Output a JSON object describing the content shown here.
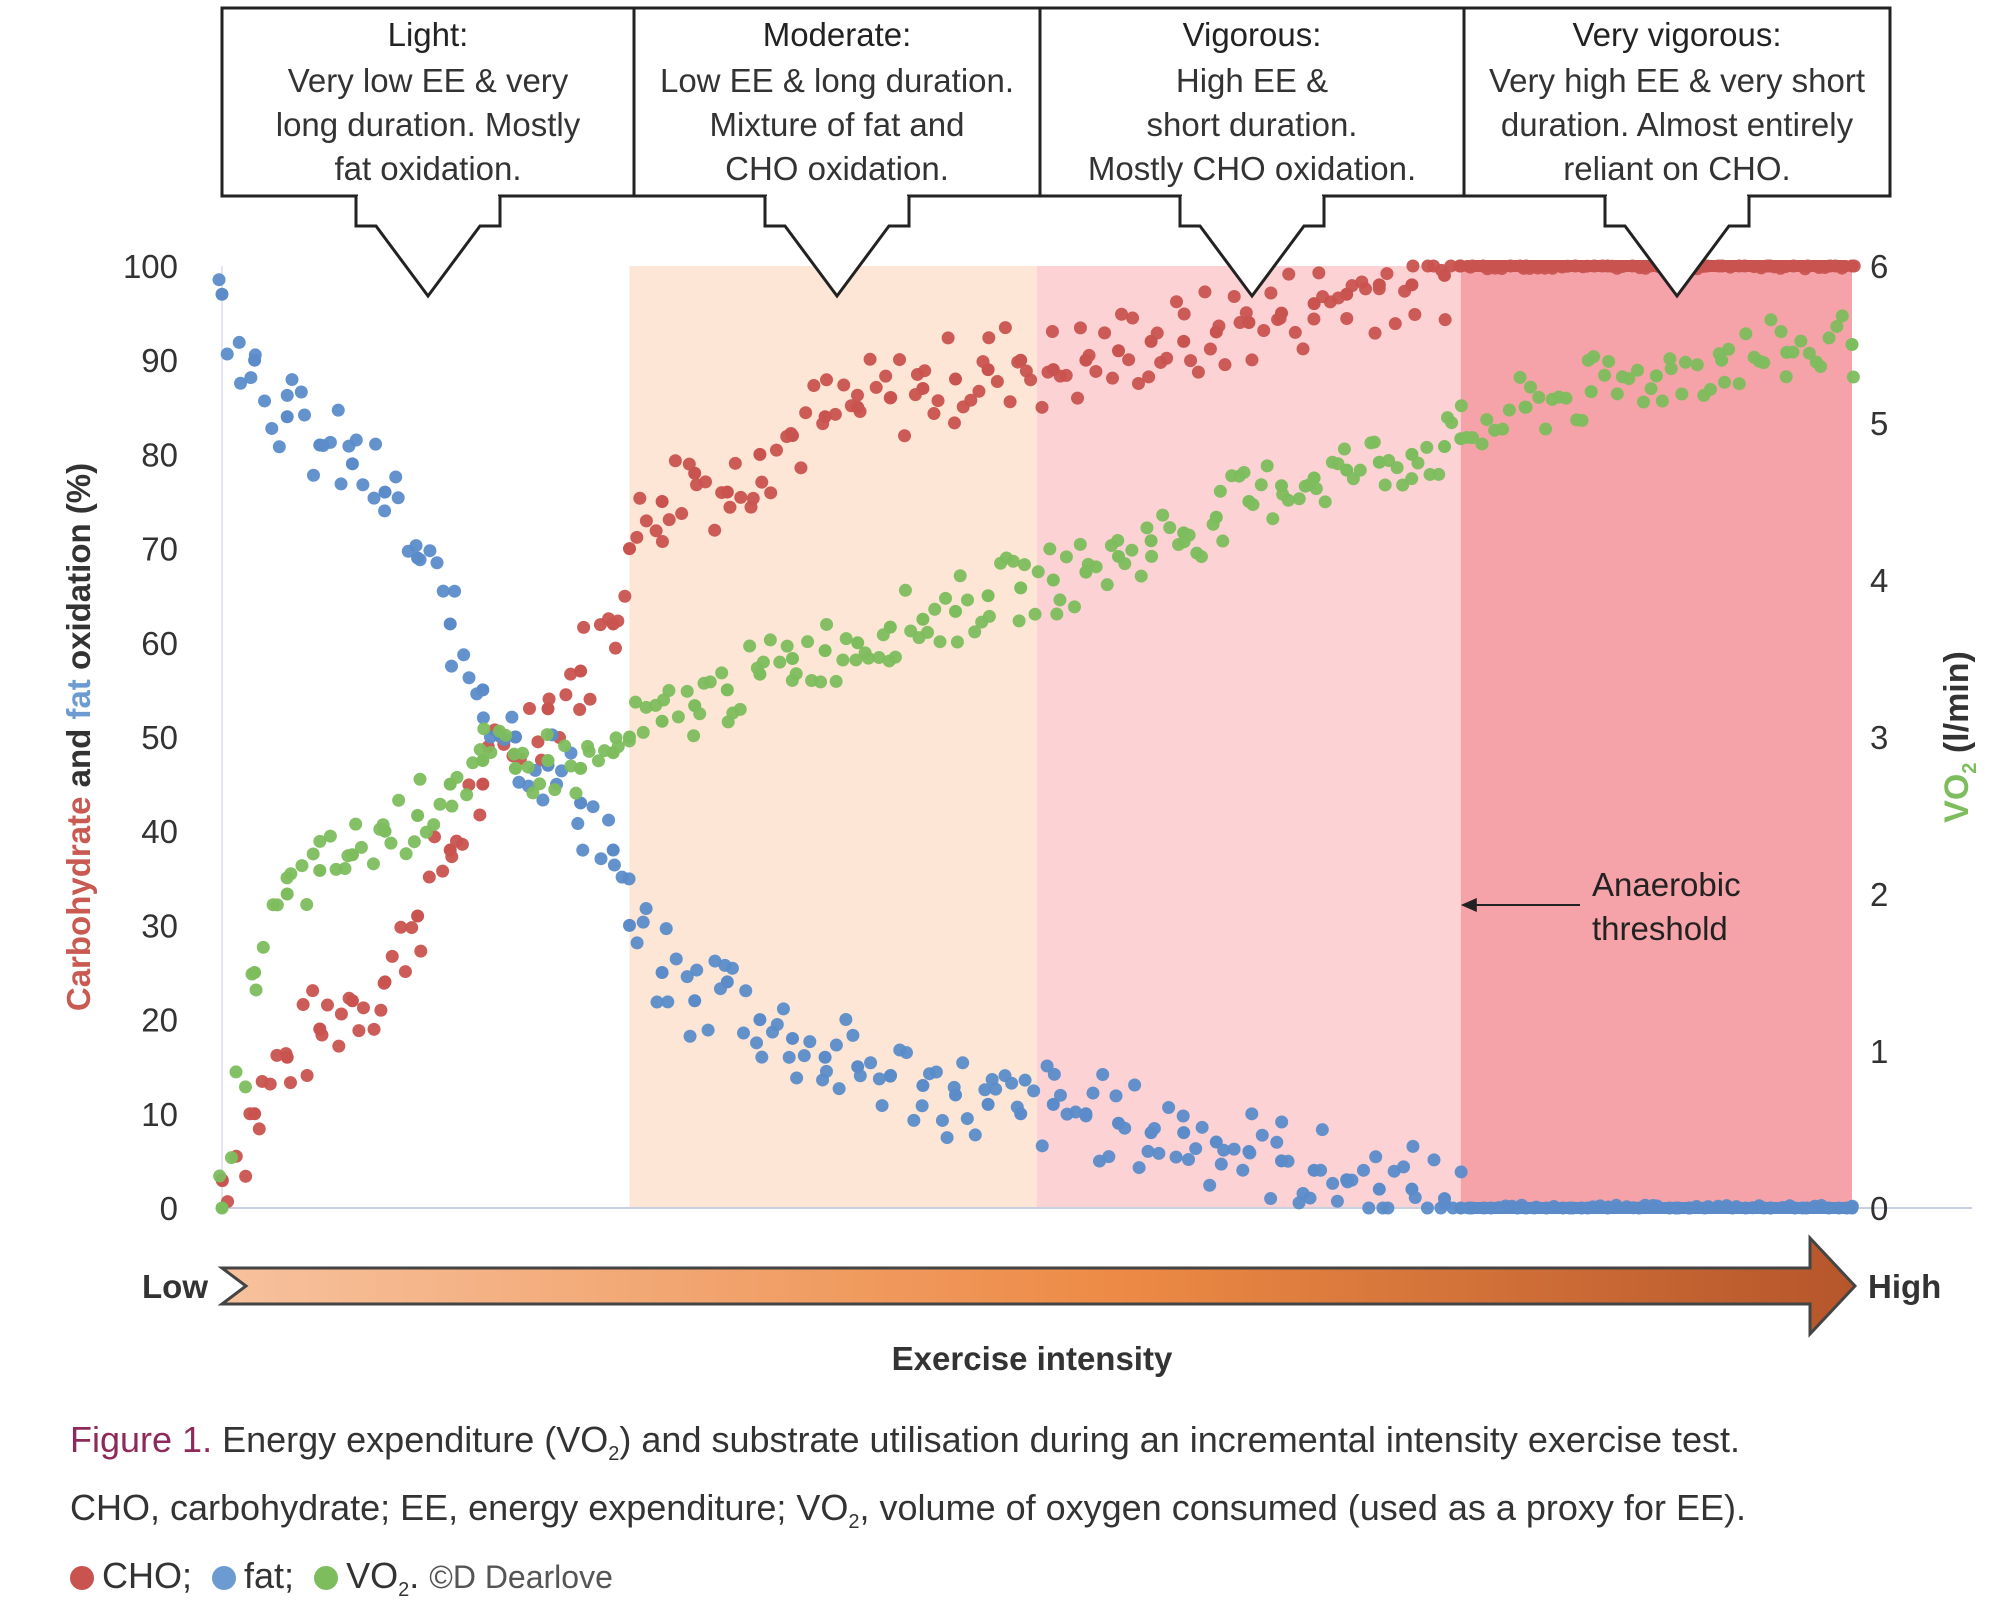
{
  "chart_data": {
    "type": "scatter",
    "xlabel": "Exercise intensity",
    "x_low_label": "Low",
    "x_high_label": "High",
    "xlim": [
      0,
      100
    ],
    "ylabel_left_parts": [
      {
        "text": "Carbohydrate",
        "color": "#c95a51"
      },
      {
        "text": " and ",
        "color": "#333333"
      },
      {
        "text": "fat",
        "color": "#6b9bd0"
      },
      {
        "text": " oxidation (%)",
        "color": "#333333"
      }
    ],
    "ylim_left": [
      0,
      100
    ],
    "yticks_left": [
      "0",
      "10",
      "20",
      "30",
      "40",
      "50",
      "60",
      "70",
      "80",
      "90",
      "100"
    ],
    "ylabel_right": "VO2 (l/min)",
    "ylabel_right_base": "VO",
    "ylabel_right_sub": "2",
    "ylabel_right_unit": "(l/min)",
    "ylim_right": [
      0,
      6
    ],
    "yticks_right": [
      "0",
      "1",
      "2",
      "3",
      "4",
      "5",
      "6"
    ],
    "zones": [
      {
        "name": "Light",
        "title": "Light:",
        "lines": [
          "Very low EE & very",
          "long duration. Mostly",
          "fat oxidation."
        ],
        "x_range": [
          0,
          25
        ],
        "fill": "none"
      },
      {
        "name": "Moderate",
        "title": "Moderate:",
        "lines": [
          "Low EE & long duration.",
          "Mixture of fat and",
          "CHO oxidation."
        ],
        "x_range": [
          25,
          50
        ],
        "fill": "#fde6d6"
      },
      {
        "name": "Vigorous",
        "title": "Vigorous:",
        "lines": [
          "High EE &",
          "short duration.",
          "Mostly CHO oxidation."
        ],
        "x_range": [
          50,
          76
        ],
        "fill": "#fcd2d4"
      },
      {
        "name": "Very vigorous",
        "title": "Very vigorous:",
        "lines": [
          "Very high EE & very short",
          "duration. Almost entirely",
          "reliant on CHO."
        ],
        "x_range": [
          76,
          100
        ],
        "fill": "#f5a3a8"
      }
    ],
    "annotation": {
      "lines": [
        "Anaerobic",
        "threshold"
      ],
      "x": 76
    },
    "series": [
      {
        "name": "CHO",
        "axis": "left",
        "color": "#c9534f",
        "x": [
          0,
          2,
          4,
          6,
          8,
          10,
          12,
          14,
          16,
          18,
          20,
          22,
          24,
          25,
          27,
          29,
          31,
          33,
          35,
          37,
          39,
          41,
          43,
          45,
          47,
          49,
          51,
          53,
          55,
          57,
          59,
          61,
          63,
          65,
          67,
          69,
          71,
          73,
          75,
          76,
          80,
          85,
          90,
          95,
          100
        ],
        "y": [
          3,
          10,
          16,
          19,
          22,
          24,
          31,
          38,
          45,
          50,
          53,
          57,
          62,
          70,
          75,
          78,
          76,
          80,
          82,
          84,
          85,
          86,
          87,
          88,
          89,
          90,
          89,
          90,
          91,
          92,
          92,
          93,
          94,
          95,
          96,
          97,
          98,
          98,
          99,
          100,
          100,
          100,
          100,
          100,
          100
        ]
      },
      {
        "name": "fat",
        "axis": "left",
        "color": "#5b8cc9",
        "x": [
          0,
          2,
          4,
          6,
          8,
          10,
          12,
          14,
          16,
          18,
          20,
          22,
          24,
          25,
          27,
          29,
          31,
          33,
          35,
          37,
          39,
          41,
          43,
          45,
          47,
          49,
          51,
          53,
          55,
          57,
          59,
          61,
          63,
          65,
          67,
          69,
          71,
          73,
          75,
          76,
          80,
          85,
          90,
          95,
          100
        ],
        "y": [
          97,
          90,
          84,
          81,
          79,
          76,
          69,
          62,
          55,
          50,
          47,
          43,
          38,
          30,
          25,
          22,
          24,
          20,
          18,
          16,
          15,
          14,
          13,
          12,
          11,
          10,
          11,
          10,
          9,
          8,
          8,
          7,
          6,
          5,
          4,
          3,
          2,
          2,
          1,
          0,
          0,
          0,
          0,
          0,
          0
        ]
      },
      {
        "name": "VO2",
        "axis": "right",
        "color": "#7dbd5d",
        "x": [
          0,
          2,
          4,
          6,
          8,
          10,
          12,
          14,
          16,
          18,
          20,
          22,
          24,
          25,
          27,
          29,
          31,
          33,
          35,
          37,
          39,
          41,
          43,
          45,
          47,
          49,
          51,
          53,
          55,
          57,
          59,
          61,
          63,
          65,
          67,
          69,
          71,
          73,
          75,
          76,
          80,
          84,
          88,
          92,
          96,
          100
        ],
        "y": [
          0.0,
          1.5,
          2.0,
          2.15,
          2.25,
          2.4,
          2.5,
          2.7,
          2.85,
          2.8,
          2.85,
          2.8,
          2.9,
          3.0,
          3.1,
          3.2,
          3.3,
          3.4,
          3.5,
          3.55,
          3.6,
          3.7,
          3.75,
          3.8,
          3.9,
          3.95,
          4.0,
          4.05,
          4.15,
          4.25,
          4.3,
          4.4,
          4.5,
          4.6,
          4.65,
          4.7,
          4.75,
          4.8,
          4.85,
          4.9,
          5.1,
          5.2,
          5.3,
          5.4,
          5.45,
          5.5
        ]
      }
    ]
  },
  "caption": {
    "figure_label": "Figure 1.",
    "text_a": " Energy expenditure (VO",
    "sub_a": "2",
    "text_b": ") and substrate utilisation during an incremental intensity exercise test.",
    "text_c": "CHO, carbohydrate; EE, energy expenditure; VO",
    "sub_c": "2",
    "text_d": ", volume of oxygen consumed (used as a proxy for EE).",
    "legend_cho": "CHO;",
    "legend_fat": "fat;",
    "legend_vo2": "VO",
    "legend_vo2_sub": "2",
    "legend_vo2_tail": ".",
    "credit": "©D Dearlove",
    "colors": {
      "cho": "#c9534f",
      "fat": "#6b9bd0",
      "vo2": "#7dbd5d"
    }
  }
}
